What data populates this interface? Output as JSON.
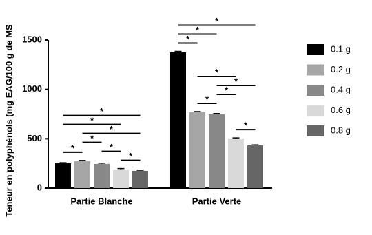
{
  "chart_data": {
    "type": "bar",
    "y_label": "Teneur en polyphénols (mg EAG/100 g de MS",
    "categories": [
      "Partie Blanche",
      "Partie Verte"
    ],
    "series": [
      {
        "name": "0.1 g",
        "color": "#000000",
        "values": [
          251,
          1375
        ],
        "errors": [
          6,
          10
        ]
      },
      {
        "name": "0.2 g",
        "color": "#a6a6a6",
        "values": [
          272,
          768
        ],
        "errors": [
          8,
          6
        ]
      },
      {
        "name": "0.4 g",
        "color": "#888888",
        "values": [
          245,
          747
        ],
        "errors": [
          8,
          8
        ]
      },
      {
        "name": "0.6 g",
        "color": "#d9d9d9",
        "values": [
          188,
          502
        ],
        "errors": [
          10,
          6
        ]
      },
      {
        "name": "0.8 g",
        "color": "#666666",
        "values": [
          175,
          433
        ],
        "errors": [
          6,
          5
        ]
      }
    ],
    "ylim": [
      0,
      1500
    ],
    "yticks": [
      0,
      500,
      1000,
      1500
    ],
    "legend": "right",
    "comparisons": [
      {
        "category": "Partie Blanche",
        "from": "0.1 g",
        "to": "0.2 g",
        "label": "*"
      },
      {
        "category": "Partie Blanche",
        "from": "0.6 g",
        "to": "0.8 g",
        "label": "*"
      },
      {
        "category": "Partie Blanche",
        "from": "0.4 g",
        "to": "0.6 g",
        "label": "*"
      },
      {
        "category": "Partie Blanche",
        "from": "0.2 g",
        "to": "0.4 g",
        "label": "*"
      },
      {
        "category": "Partie Blanche",
        "from": "0.2 g",
        "to": "0.8 g",
        "label": "*"
      },
      {
        "category": "Partie Blanche",
        "from": "0.1 g",
        "to": "0.6 g",
        "label": "*"
      },
      {
        "category": "Partie Blanche",
        "from": "0.1 g",
        "to": "0.8 g",
        "label": "*"
      },
      {
        "category": "Partie Verte",
        "from": "0.6 g",
        "to": "0.8 g",
        "label": "*"
      },
      {
        "category": "Partie Verte",
        "from": "0.2 g",
        "to": "0.4 g",
        "label": "*"
      },
      {
        "category": "Partie Verte",
        "from": "0.4 g",
        "to": "0.6 g",
        "label": "*"
      },
      {
        "category": "Partie Verte",
        "from": "0.4 g",
        "to": "0.8 g",
        "label": "*"
      },
      {
        "category": "Partie Verte",
        "from": "0.2 g",
        "to": "0.6 g",
        "label": "*"
      },
      {
        "category": "Partie Verte",
        "from": "0.1 g",
        "to": "0.2 g",
        "label": "*"
      },
      {
        "category": "Partie Verte",
        "from": "0.1 g",
        "to": "0.4 g",
        "label": "*"
      },
      {
        "category": "Partie Verte",
        "from": "0.1 g",
        "to": "0.8 g",
        "label": "*"
      }
    ]
  }
}
